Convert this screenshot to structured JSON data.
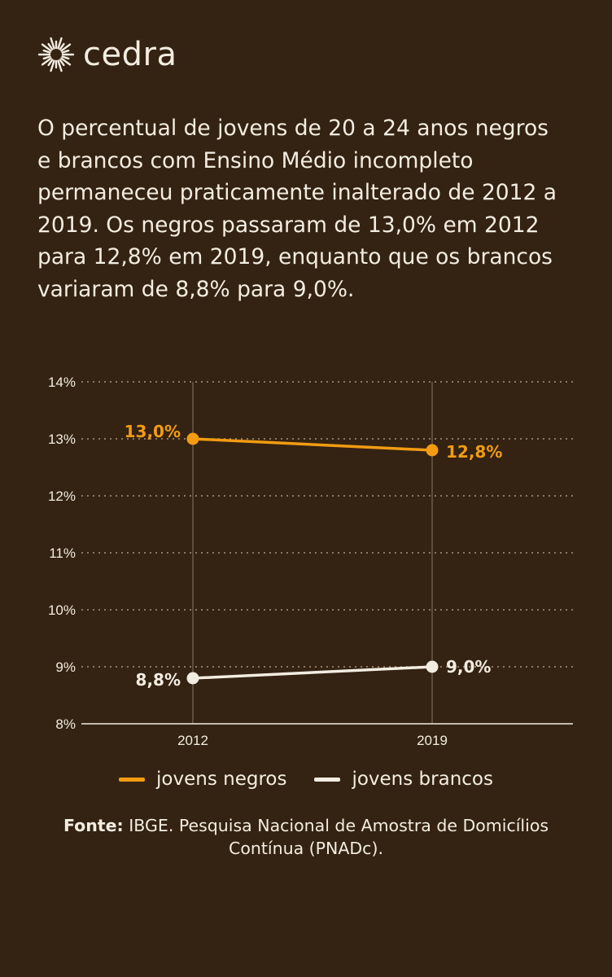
{
  "brand": {
    "name": "cedra",
    "logo_icon": "sun-burst-icon"
  },
  "intro_text": "O percentual de jovens de 20 a 24 anos negros e brancos com Ensino Médio incompleto permaneceu praticamente inalterado de 2012 a 2019. Os negros passaram de 13,0% em 2012 para 12,8% em 2019, enquanto que os brancos variaram de 8,8% para 9,0%.",
  "colors": {
    "background": "#342212",
    "negros": "#f29c12",
    "brancos": "#f3ede1",
    "grid": "#a89680"
  },
  "chart_data": {
    "type": "line",
    "x": [
      2012,
      2019
    ],
    "x_tick_labels": [
      "2012",
      "2019"
    ],
    "ylim": [
      8,
      14
    ],
    "y_ticks": [
      8,
      9,
      10,
      11,
      12,
      13,
      14
    ],
    "y_tick_labels": [
      "8%",
      "9%",
      "10%",
      "11%",
      "12%",
      "13%",
      "14%"
    ],
    "grid": true,
    "legend_position": "bottom",
    "series": [
      {
        "name": "jovens negros",
        "values": [
          13.0,
          12.8
        ],
        "labels": [
          "13,0%",
          "12,8%"
        ],
        "color": "#f29c12"
      },
      {
        "name": "jovens brancos",
        "values": [
          8.8,
          9.0
        ],
        "labels": [
          "8,8%",
          "9,0%"
        ],
        "color": "#f3ede1"
      }
    ]
  },
  "legend": [
    {
      "label": "jovens negros",
      "color": "#f29c12"
    },
    {
      "label": "jovens brancos",
      "color": "#f3ede1"
    }
  ],
  "source": {
    "prefix": "Fonte:",
    "text": "IBGE. Pesquisa Nacional de Amostra de Domicílios Contínua (PNADc)."
  }
}
